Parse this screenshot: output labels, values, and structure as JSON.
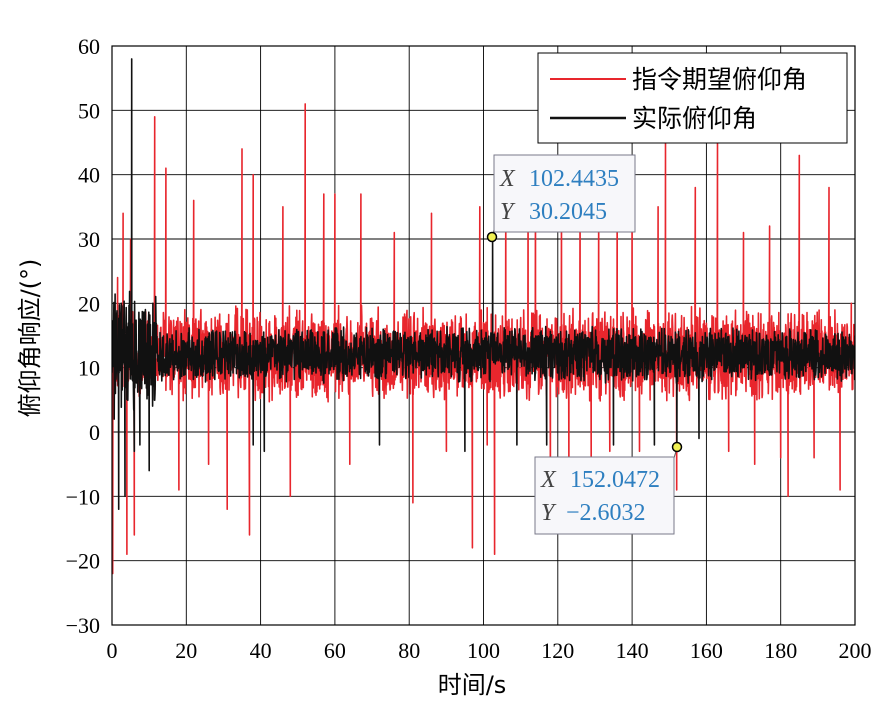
{
  "chart_data": {
    "type": "line",
    "xlabel": "时间/s",
    "ylabel": "俯仰角响应/(°)",
    "xlim": [
      0,
      200
    ],
    "ylim": [
      -30,
      60
    ],
    "xticks": [
      "0",
      "20",
      "40",
      "60",
      "80",
      "100",
      "120",
      "140",
      "160",
      "180",
      "200"
    ],
    "yticks": [
      "60",
      "50",
      "40",
      "30",
      "20",
      "10",
      "0",
      "−10",
      "−20",
      "−30"
    ],
    "grid": true,
    "legend_position": "top-right",
    "series": [
      {
        "name": "指令期望俯仰角",
        "color": "#e8262d",
        "baseline": 12,
        "noise": 6,
        "spikes": [
          [
            0.2,
            -22
          ],
          [
            1.5,
            24
          ],
          [
            3,
            34
          ],
          [
            4,
            -19
          ],
          [
            5,
            30
          ],
          [
            6,
            -16
          ],
          [
            11.5,
            49
          ],
          [
            14.5,
            41
          ],
          [
            18,
            -9
          ],
          [
            22,
            36
          ],
          [
            26,
            -5
          ],
          [
            31,
            -12
          ],
          [
            35,
            44
          ],
          [
            37,
            -16
          ],
          [
            38,
            40
          ],
          [
            46,
            35
          ],
          [
            48,
            -10
          ],
          [
            52,
            51
          ],
          [
            57,
            37
          ],
          [
            60,
            37
          ],
          [
            64,
            -5
          ],
          [
            67,
            37
          ],
          [
            76,
            31
          ],
          [
            81,
            -11
          ],
          [
            86,
            34
          ],
          [
            90,
            -3
          ],
          [
            97,
            -18
          ],
          [
            99,
            35
          ],
          [
            101,
            -2
          ],
          [
            103,
            -19
          ],
          [
            106,
            36
          ],
          [
            112,
            38
          ],
          [
            114,
            40
          ],
          [
            118,
            -8
          ],
          [
            121,
            36
          ],
          [
            123,
            -6
          ],
          [
            126,
            38
          ],
          [
            129,
            -5
          ],
          [
            131,
            35
          ],
          [
            134,
            -3
          ],
          [
            136,
            38
          ],
          [
            140,
            35
          ],
          [
            142,
            -3
          ],
          [
            147,
            35
          ],
          [
            149,
            45
          ],
          [
            152,
            -9
          ],
          [
            157,
            38
          ],
          [
            163,
            45
          ],
          [
            166,
            -3
          ],
          [
            170,
            31
          ],
          [
            173,
            -5
          ],
          [
            177,
            32
          ],
          [
            180,
            -4
          ],
          [
            182,
            -10
          ],
          [
            185,
            43
          ],
          [
            189,
            -4
          ],
          [
            193,
            38
          ],
          [
            196,
            -9
          ],
          [
            199,
            20
          ]
        ]
      },
      {
        "name": "实际俯仰角",
        "color": "#111111",
        "baseline": 12,
        "noise": 3.5,
        "spikes": [
          [
            0.6,
            2
          ],
          [
            1.8,
            -12
          ],
          [
            2.5,
            20
          ],
          [
            3.5,
            -10
          ],
          [
            5.3,
            58
          ],
          [
            6,
            -3
          ],
          [
            7.5,
            -2
          ],
          [
            10,
            -6
          ],
          [
            11,
            20
          ],
          [
            38,
            -2
          ],
          [
            41,
            -3
          ],
          [
            72,
            -2
          ],
          [
            95,
            -3
          ],
          [
            102.4435,
            30.2045
          ],
          [
            109,
            -2
          ],
          [
            117,
            -2
          ],
          [
            135,
            -2
          ],
          [
            146,
            -2
          ],
          [
            152.0472,
            -2.6032
          ],
          [
            158,
            -1
          ]
        ]
      }
    ],
    "datatips": [
      {
        "x": "102.4435",
        "y": "30.2045"
      },
      {
        "x": "152.0472",
        "y": "−2.6032"
      }
    ]
  },
  "datatip_keys": {
    "x": "X",
    "y": "Y"
  }
}
